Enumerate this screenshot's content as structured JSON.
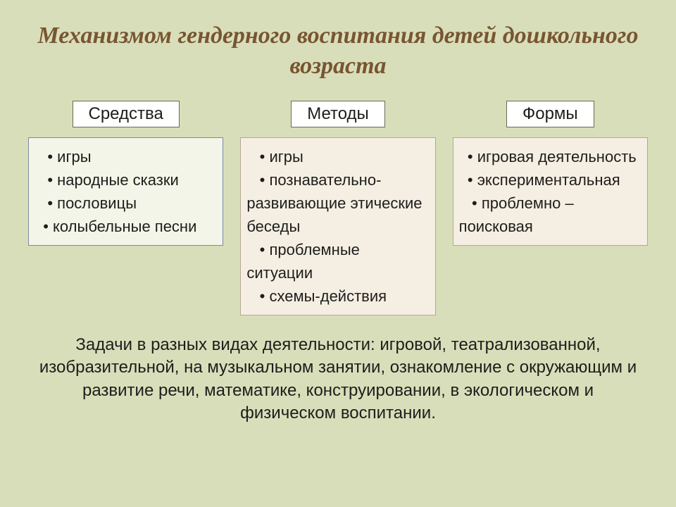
{
  "layout": {
    "background_color": "#d9deba",
    "title_color": "#785531",
    "text_color": "#1d1d1b",
    "header_border_color": "#6a6a52",
    "box_border_colors": [
      "#7a8aa0",
      "#b5a890",
      "#b5a890"
    ],
    "box_bg_colors": [
      "#f3f5e8",
      "#f5efe3",
      "#f5efe3"
    ],
    "title_fontsize": 34,
    "header_fontsize": 24,
    "body_fontsize": 22,
    "footer_fontsize": 24
  },
  "title": "Механизмом гендерного воспитания детей дошкольного возраста",
  "columns": [
    {
      "header": "Средства",
      "items": [
        "игры",
        "народные сказки",
        "пословицы",
        "колыбельные песни"
      ]
    },
    {
      "header": "Методы",
      "items": [
        "игры",
        "познавательно-развивающие этические беседы",
        "проблемные ситуации",
        "схемы-действия"
      ]
    },
    {
      "header": "Формы",
      "items": [
        "игровая деятельность",
        "экспериментальная",
        "проблемно – поисковая"
      ]
    }
  ],
  "footer": "Задачи  в разных видах деятельности: игровой, театрализованной, изобразительной, на музыкальном занятии, ознакомление с окружающим и развитие речи, математике, конструировании, в экологическом и физическом воспитании."
}
